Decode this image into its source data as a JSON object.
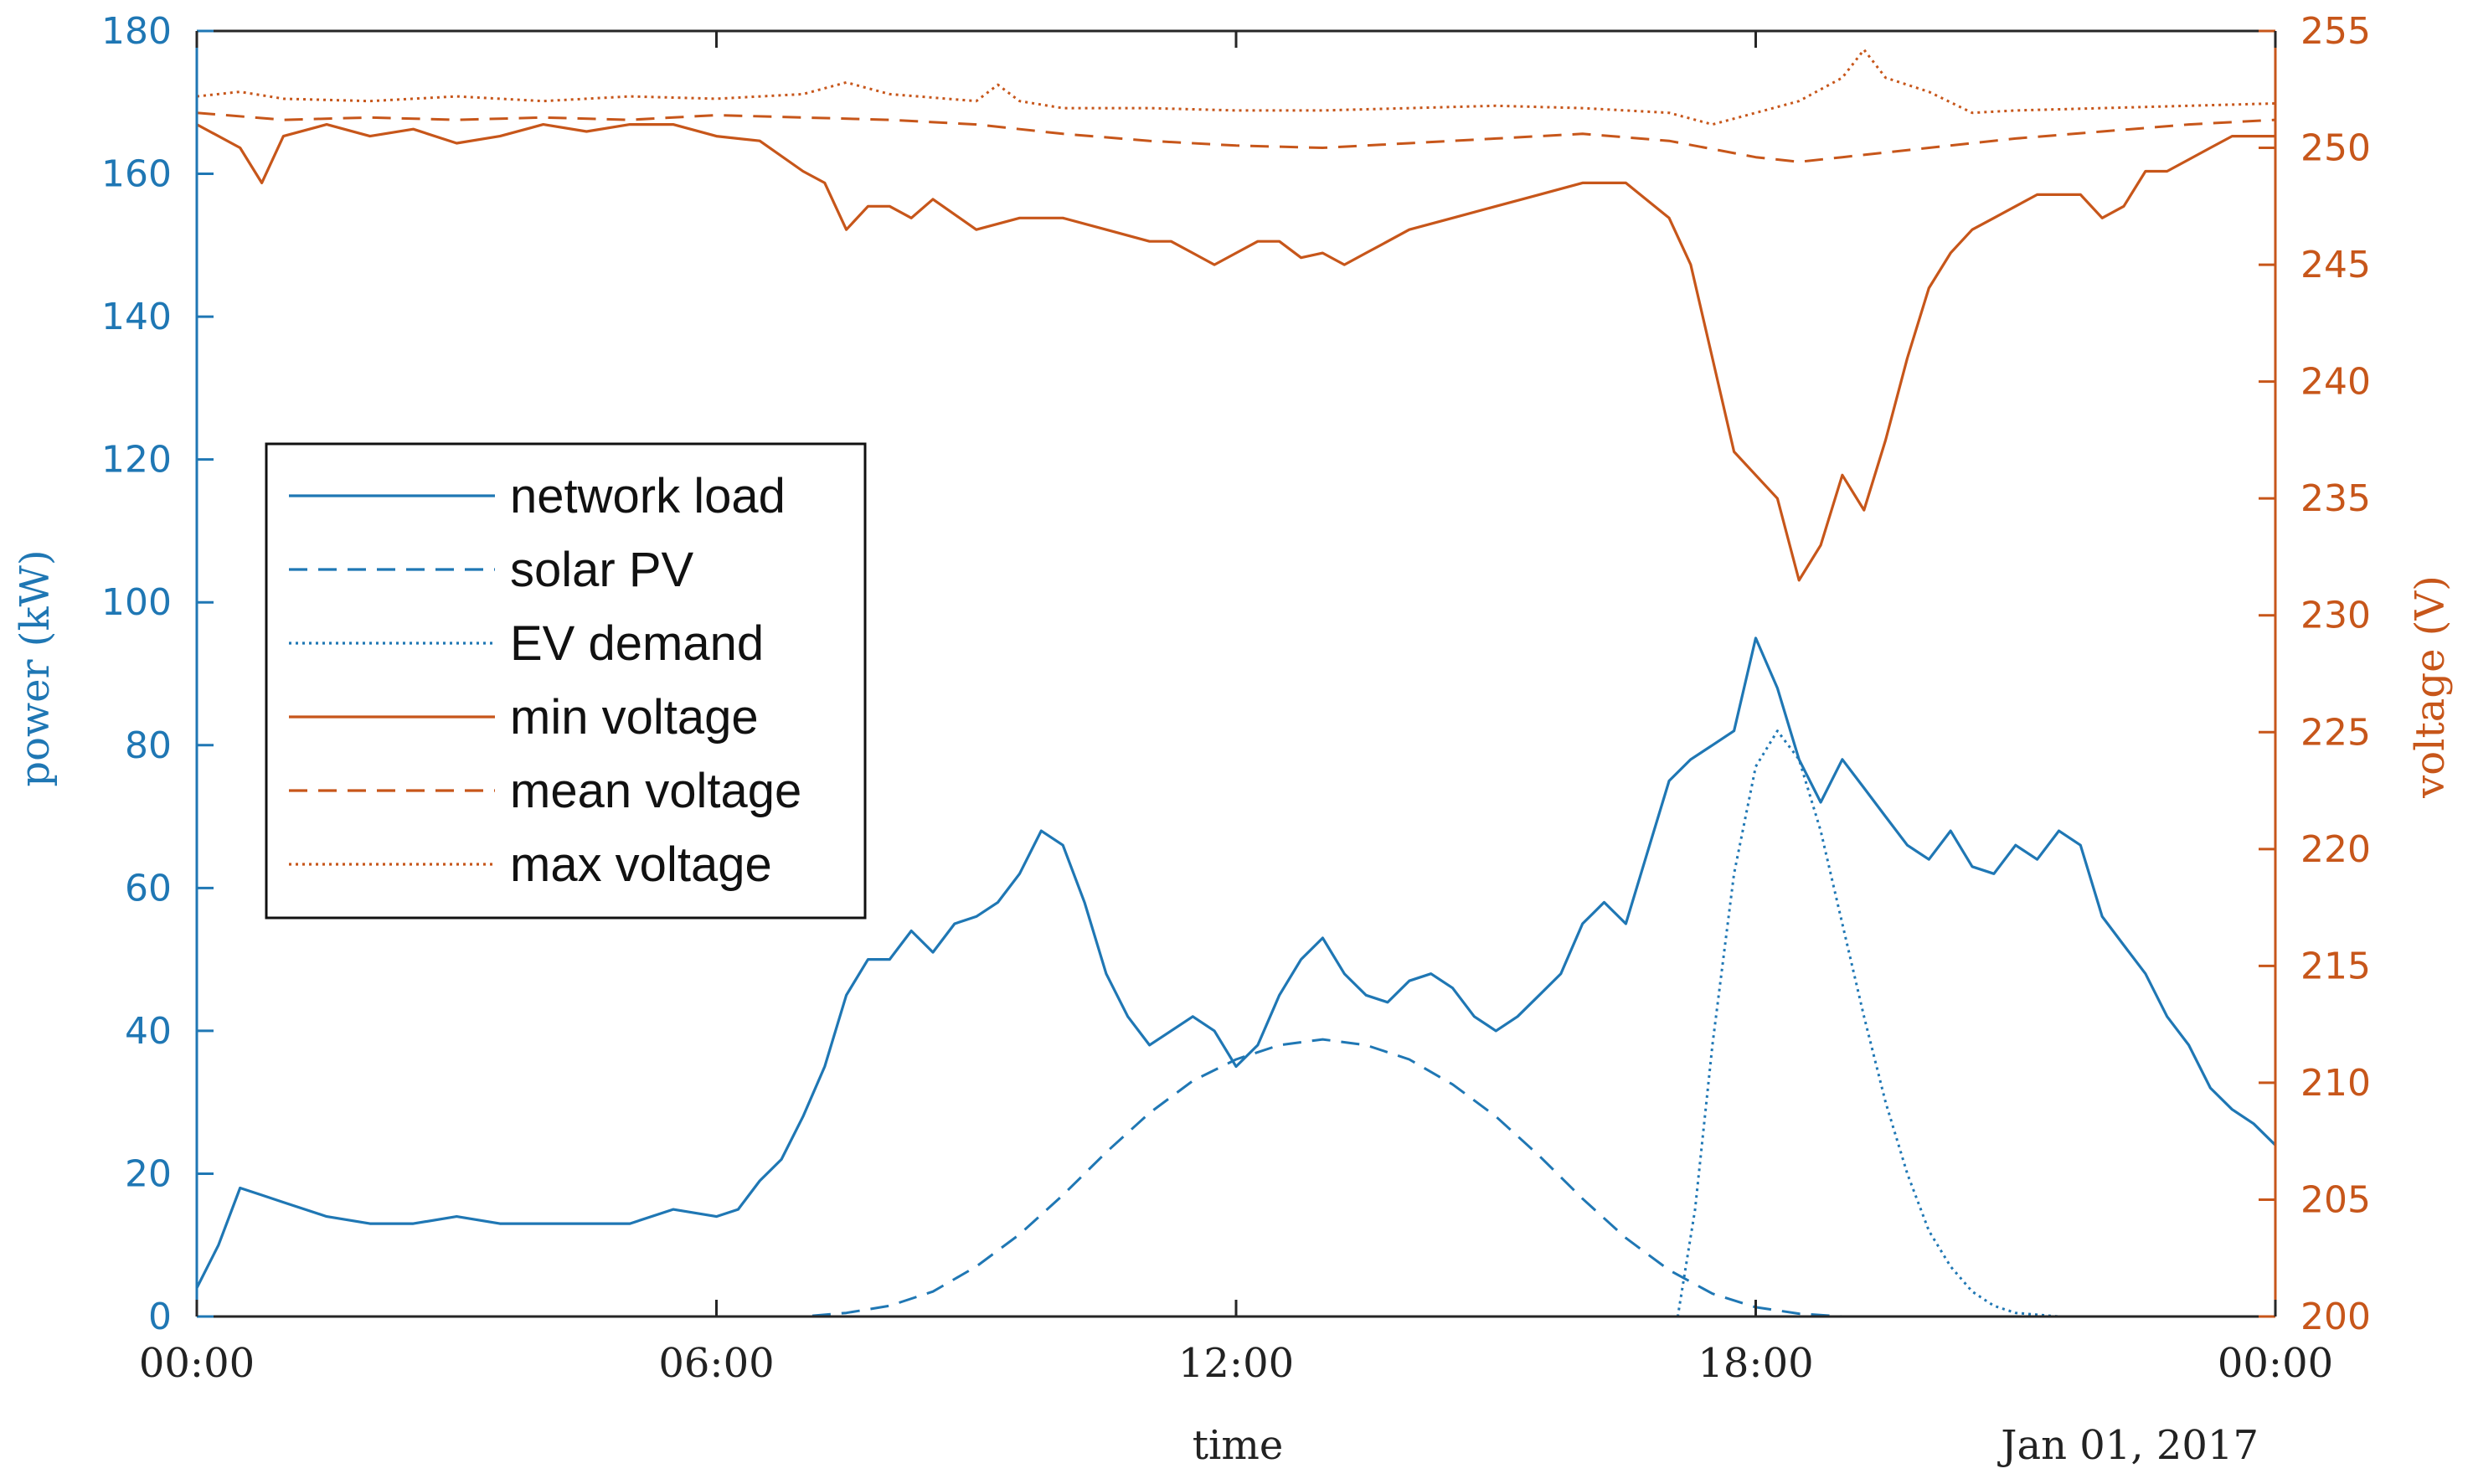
{
  "chart_data": {
    "type": "line",
    "title": "",
    "xlabel": "time",
    "date_label": "Jan 01, 2017",
    "ylabel_left": "power (kW)",
    "ylabel_right": "voltage (V)",
    "x_ticks": [
      "00:00",
      "06:00",
      "12:00",
      "18:00",
      "00:00"
    ],
    "x_tick_hours": [
      0,
      6,
      12,
      18,
      24
    ],
    "x_range_hours": [
      0,
      24
    ],
    "y_left_range": [
      0,
      180
    ],
    "y_left_ticks": [
      "0",
      "20",
      "40",
      "60",
      "80",
      "100",
      "120",
      "140",
      "160",
      "180"
    ],
    "y_right_range": [
      200,
      255
    ],
    "y_right_ticks": [
      "200",
      "205",
      "210",
      "215",
      "220",
      "225",
      "230",
      "235",
      "240",
      "245",
      "250",
      "255"
    ],
    "legend_position": "middle-left",
    "colors": {
      "power": "#1f77b4",
      "voltage": "#c7561a",
      "axes": "#262626"
    },
    "series": [
      {
        "name": "network load",
        "axis": "left",
        "style": "solid",
        "points": [
          [
            0,
            4
          ],
          [
            0.25,
            10
          ],
          [
            0.5,
            18
          ],
          [
            0.75,
            17
          ],
          [
            1,
            16
          ],
          [
            1.5,
            14
          ],
          [
            2,
            13
          ],
          [
            2.5,
            13
          ],
          [
            3,
            14
          ],
          [
            3.5,
            13
          ],
          [
            4,
            13
          ],
          [
            4.5,
            13
          ],
          [
            5,
            13
          ],
          [
            5.5,
            15
          ],
          [
            6,
            14
          ],
          [
            6.25,
            15
          ],
          [
            6.5,
            19
          ],
          [
            6.75,
            22
          ],
          [
            7,
            28
          ],
          [
            7.25,
            35
          ],
          [
            7.5,
            45
          ],
          [
            7.75,
            50
          ],
          [
            8,
            50
          ],
          [
            8.25,
            54
          ],
          [
            8.5,
            51
          ],
          [
            8.75,
            55
          ],
          [
            9,
            56
          ],
          [
            9.25,
            58
          ],
          [
            9.5,
            62
          ],
          [
            9.75,
            68
          ],
          [
            10,
            66
          ],
          [
            10.25,
            58
          ],
          [
            10.5,
            48
          ],
          [
            10.75,
            42
          ],
          [
            11,
            38
          ],
          [
            11.25,
            40
          ],
          [
            11.5,
            42
          ],
          [
            11.75,
            40
          ],
          [
            12,
            35
          ],
          [
            12.25,
            38
          ],
          [
            12.5,
            45
          ],
          [
            12.75,
            50
          ],
          [
            13,
            53
          ],
          [
            13.25,
            48
          ],
          [
            13.5,
            45
          ],
          [
            13.75,
            44
          ],
          [
            14,
            47
          ],
          [
            14.25,
            48
          ],
          [
            14.5,
            46
          ],
          [
            14.75,
            42
          ],
          [
            15,
            40
          ],
          [
            15.25,
            42
          ],
          [
            15.5,
            45
          ],
          [
            15.75,
            48
          ],
          [
            16,
            55
          ],
          [
            16.25,
            58
          ],
          [
            16.5,
            55
          ],
          [
            16.75,
            65
          ],
          [
            17,
            75
          ],
          [
            17.25,
            78
          ],
          [
            17.5,
            80
          ],
          [
            17.75,
            82
          ],
          [
            18,
            95
          ],
          [
            18.25,
            88
          ],
          [
            18.5,
            78
          ],
          [
            18.75,
            72
          ],
          [
            19,
            78
          ],
          [
            19.25,
            74
          ],
          [
            19.5,
            70
          ],
          [
            19.75,
            66
          ],
          [
            20,
            64
          ],
          [
            20.25,
            68
          ],
          [
            20.5,
            63
          ],
          [
            20.75,
            62
          ],
          [
            21,
            66
          ],
          [
            21.25,
            64
          ],
          [
            21.5,
            68
          ],
          [
            21.75,
            66
          ],
          [
            22,
            56
          ],
          [
            22.25,
            52
          ],
          [
            22.5,
            48
          ],
          [
            22.75,
            42
          ],
          [
            23,
            38
          ],
          [
            23.25,
            32
          ],
          [
            23.5,
            29
          ],
          [
            23.75,
            27
          ],
          [
            24,
            24
          ]
        ]
      },
      {
        "name": "solar PV",
        "axis": "left",
        "style": "dashed",
        "points": [
          [
            0,
            0
          ],
          [
            6,
            0
          ],
          [
            7,
            0
          ],
          [
            7.5,
            0.5
          ],
          [
            8,
            1.5
          ],
          [
            8.5,
            3.5
          ],
          [
            9,
            7
          ],
          [
            9.5,
            11.5
          ],
          [
            10,
            17
          ],
          [
            10.5,
            23
          ],
          [
            11,
            28.5
          ],
          [
            11.5,
            33
          ],
          [
            12,
            36
          ],
          [
            12.5,
            38
          ],
          [
            13,
            38.8
          ],
          [
            13.5,
            38
          ],
          [
            14,
            36
          ],
          [
            14.5,
            32.5
          ],
          [
            15,
            28
          ],
          [
            15.5,
            22.5
          ],
          [
            16,
            16.5
          ],
          [
            16.5,
            11
          ],
          [
            17,
            6.5
          ],
          [
            17.5,
            3.2
          ],
          [
            18,
            1.3
          ],
          [
            18.5,
            0.4
          ],
          [
            19,
            0
          ],
          [
            24,
            0
          ]
        ]
      },
      {
        "name": "EV demand",
        "axis": "left",
        "style": "dotted",
        "points": [
          [
            0,
            0
          ],
          [
            17,
            0
          ],
          [
            17.1,
            0
          ],
          [
            17.3,
            15
          ],
          [
            17.5,
            38
          ],
          [
            17.75,
            62
          ],
          [
            18,
            77
          ],
          [
            18.25,
            82
          ],
          [
            18.5,
            78
          ],
          [
            18.75,
            68
          ],
          [
            19,
            55
          ],
          [
            19.25,
            42
          ],
          [
            19.5,
            30
          ],
          [
            19.75,
            20
          ],
          [
            20,
            12
          ],
          [
            20.25,
            7
          ],
          [
            20.5,
            3.5
          ],
          [
            20.75,
            1.5
          ],
          [
            21,
            0.5
          ],
          [
            21.5,
            0
          ],
          [
            24,
            0
          ]
        ]
      },
      {
        "name": "min voltage",
        "axis": "right",
        "style": "solid",
        "points": [
          [
            0,
            251
          ],
          [
            0.5,
            250
          ],
          [
            0.75,
            248.5
          ],
          [
            1,
            250.5
          ],
          [
            1.5,
            251
          ],
          [
            2,
            250.5
          ],
          [
            2.5,
            250.8
          ],
          [
            3,
            250.2
          ],
          [
            3.5,
            250.5
          ],
          [
            4,
            251
          ],
          [
            4.5,
            250.7
          ],
          [
            5,
            251
          ],
          [
            5.5,
            251
          ],
          [
            6,
            250.5
          ],
          [
            6.5,
            250.3
          ],
          [
            7,
            249
          ],
          [
            7.25,
            248.5
          ],
          [
            7.5,
            246.5
          ],
          [
            7.75,
            247.5
          ],
          [
            8,
            247.5
          ],
          [
            8.25,
            247
          ],
          [
            8.5,
            247.8
          ],
          [
            9,
            246.5
          ],
          [
            9.5,
            247
          ],
          [
            10,
            247
          ],
          [
            10.5,
            246.5
          ],
          [
            11,
            246
          ],
          [
            11.25,
            246
          ],
          [
            11.5,
            245.5
          ],
          [
            11.75,
            245
          ],
          [
            12,
            245.5
          ],
          [
            12.25,
            246
          ],
          [
            12.5,
            246
          ],
          [
            12.75,
            245.3
          ],
          [
            13,
            245.5
          ],
          [
            13.25,
            245
          ],
          [
            13.5,
            245.5
          ],
          [
            13.75,
            246
          ],
          [
            14,
            246.5
          ],
          [
            14.5,
            247
          ],
          [
            15,
            247.5
          ],
          [
            15.5,
            248
          ],
          [
            16,
            248.5
          ],
          [
            16.5,
            248.5
          ],
          [
            17,
            247
          ],
          [
            17.25,
            245
          ],
          [
            17.5,
            241
          ],
          [
            17.75,
            237
          ],
          [
            18,
            236
          ],
          [
            18.25,
            235
          ],
          [
            18.5,
            231.5
          ],
          [
            18.75,
            233
          ],
          [
            19,
            236
          ],
          [
            19.25,
            234.5
          ],
          [
            19.5,
            237.5
          ],
          [
            19.75,
            241
          ],
          [
            20,
            244
          ],
          [
            20.25,
            245.5
          ],
          [
            20.5,
            246.5
          ],
          [
            20.75,
            247
          ],
          [
            21,
            247.5
          ],
          [
            21.25,
            248
          ],
          [
            21.5,
            248
          ],
          [
            21.75,
            248
          ],
          [
            22,
            247
          ],
          [
            22.25,
            247.5
          ],
          [
            22.5,
            249
          ],
          [
            22.75,
            249
          ],
          [
            23,
            249.5
          ],
          [
            23.25,
            250
          ],
          [
            23.5,
            250.5
          ],
          [
            24,
            250.5
          ]
        ]
      },
      {
        "name": "mean voltage",
        "axis": "right",
        "style": "dashed",
        "points": [
          [
            0,
            251.5
          ],
          [
            1,
            251.2
          ],
          [
            2,
            251.3
          ],
          [
            3,
            251.2
          ],
          [
            4,
            251.3
          ],
          [
            5,
            251.2
          ],
          [
            6,
            251.4
          ],
          [
            7,
            251.3
          ],
          [
            8,
            251.2
          ],
          [
            9,
            251
          ],
          [
            10,
            250.6
          ],
          [
            11,
            250.3
          ],
          [
            12,
            250.1
          ],
          [
            13,
            250
          ],
          [
            14,
            250.2
          ],
          [
            15,
            250.4
          ],
          [
            16,
            250.6
          ],
          [
            17,
            250.3
          ],
          [
            18,
            249.6
          ],
          [
            18.5,
            249.4
          ],
          [
            19,
            249.6
          ],
          [
            20,
            250
          ],
          [
            21,
            250.4
          ],
          [
            22,
            250.7
          ],
          [
            23,
            251
          ],
          [
            24,
            251.2
          ]
        ]
      },
      {
        "name": "max voltage",
        "axis": "right",
        "style": "dotted",
        "points": [
          [
            0,
            252.2
          ],
          [
            0.5,
            252.4
          ],
          [
            1,
            252.1
          ],
          [
            2,
            252
          ],
          [
            3,
            252.2
          ],
          [
            4,
            252
          ],
          [
            5,
            252.2
          ],
          [
            6,
            252.1
          ],
          [
            7,
            252.3
          ],
          [
            7.5,
            252.8
          ],
          [
            8,
            252.3
          ],
          [
            9,
            252
          ],
          [
            9.25,
            252.7
          ],
          [
            9.5,
            252
          ],
          [
            10,
            251.7
          ],
          [
            11,
            251.7
          ],
          [
            12,
            251.6
          ],
          [
            13,
            251.6
          ],
          [
            14,
            251.7
          ],
          [
            15,
            251.8
          ],
          [
            16,
            251.7
          ],
          [
            17,
            251.5
          ],
          [
            17.5,
            251
          ],
          [
            18,
            251.5
          ],
          [
            18.5,
            252
          ],
          [
            19,
            253
          ],
          [
            19.25,
            254.2
          ],
          [
            19.5,
            253
          ],
          [
            20,
            252.4
          ],
          [
            20.5,
            251.5
          ],
          [
            21,
            251.6
          ],
          [
            22,
            251.7
          ],
          [
            23,
            251.8
          ],
          [
            24,
            251.9
          ]
        ]
      }
    ]
  }
}
